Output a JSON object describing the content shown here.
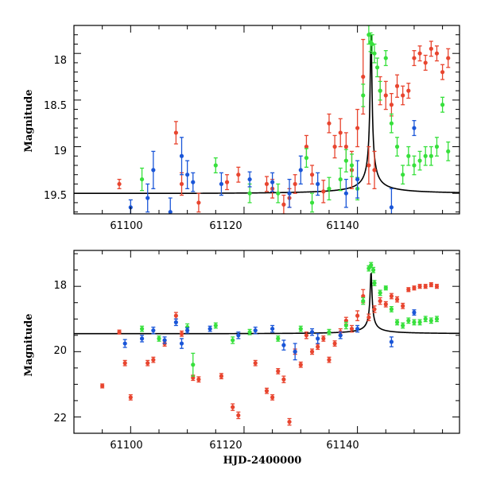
{
  "colors": {
    "red": "#e8452f",
    "green": "#37e03c",
    "blue": "#1a56d8",
    "model": "#000000"
  },
  "chart_data": [
    {
      "type": "scatter",
      "panel": "top",
      "title": "",
      "xlabel": "",
      "ylabel": "Magnitude",
      "xlim": [
        61090,
        61158
      ],
      "ylim": [
        17.7,
        19.72
      ],
      "y_inverted": true,
      "xticks": [
        61100,
        61120,
        61140
      ],
      "xtick_labels": [
        "61100",
        "61120",
        "61140"
      ],
      "yticks": [
        18,
        18.5,
        19,
        19.5
      ],
      "ytick_labels": [
        "18",
        "18.5",
        "19",
        "19.5"
      ],
      "model": {
        "t0": 61142.4,
        "baseline": 19.5,
        "peak": 17.75,
        "tE": 32,
        "u0": 0.0045
      },
      "series": [
        {
          "name": "red",
          "color": "#e8452f",
          "points": [
            [
              61098,
              19.4,
              0.05
            ],
            [
              61108,
              18.85,
              0.12
            ],
            [
              61109,
              19.4,
              0.12
            ],
            [
              61112,
              19.6,
              0.1
            ],
            [
              61117,
              19.38,
              0.08
            ],
            [
              61119,
              19.3,
              0.08
            ],
            [
              61124,
              19.4,
              0.08
            ],
            [
              61125,
              19.45,
              0.1
            ],
            [
              61127,
              19.62,
              0.1
            ],
            [
              61128,
              19.55,
              0.1
            ],
            [
              61129,
              19.4,
              0.1
            ],
            [
              61131,
              19.0,
              0.12
            ],
            [
              61132,
              19.3,
              0.1
            ],
            [
              61134,
              19.48,
              0.12
            ],
            [
              61135,
              18.75,
              0.1
            ],
            [
              61136,
              19.0,
              0.12
            ],
            [
              61137,
              18.85,
              0.15
            ],
            [
              61138,
              19.0,
              0.15
            ],
            [
              61139,
              19.25,
              0.2
            ],
            [
              61140,
              18.8,
              0.2
            ],
            [
              61141,
              18.25,
              0.4
            ],
            [
              61142,
              19.2,
              0.2
            ],
            [
              61143,
              19.25,
              0.2
            ],
            [
              61144,
              18.4,
              0.15
            ],
            [
              61145,
              18.45,
              0.15
            ],
            [
              61146,
              18.55,
              0.12
            ],
            [
              61147,
              18.35,
              0.12
            ],
            [
              61148,
              18.45,
              0.1
            ],
            [
              61149,
              18.4,
              0.08
            ],
            [
              61150,
              18.05,
              0.08
            ],
            [
              61151,
              18.0,
              0.08
            ],
            [
              61152,
              18.1,
              0.08
            ],
            [
              61153,
              17.95,
              0.08
            ],
            [
              61154,
              18.0,
              0.08
            ],
            [
              61155,
              18.2,
              0.08
            ],
            [
              61156,
              18.05,
              0.1
            ]
          ]
        },
        {
          "name": "green",
          "color": "#37e03c",
          "points": [
            [
              61102,
              19.35,
              0.12
            ],
            [
              61115,
              19.2,
              0.08
            ],
            [
              61121,
              19.5,
              0.1
            ],
            [
              61126,
              19.5,
              0.1
            ],
            [
              61131,
              19.12,
              0.1
            ],
            [
              61132,
              19.6,
              0.1
            ],
            [
              61135,
              19.45,
              0.12
            ],
            [
              61137,
              19.35,
              0.12
            ],
            [
              61138,
              19.15,
              0.12
            ],
            [
              61139,
              19.2,
              0.12
            ],
            [
              61140,
              19.45,
              0.12
            ],
            [
              61141,
              18.45,
              0.12
            ],
            [
              61142,
              17.8,
              0.1
            ],
            [
              61142.3,
              17.88,
              0.1
            ],
            [
              61142.6,
              17.9,
              0.1
            ],
            [
              61143,
              18.0,
              0.1
            ],
            [
              61143.5,
              18.15,
              0.1
            ],
            [
              61144,
              18.4,
              0.1
            ],
            [
              61145,
              18.05,
              0.08
            ],
            [
              61146,
              18.75,
              0.1
            ],
            [
              61147,
              19.0,
              0.1
            ],
            [
              61148,
              19.3,
              0.1
            ],
            [
              61149,
              19.1,
              0.1
            ],
            [
              61150,
              19.2,
              0.1
            ],
            [
              61151,
              19.15,
              0.1
            ],
            [
              61152,
              19.1,
              0.1
            ],
            [
              61153,
              19.1,
              0.1
            ],
            [
              61154,
              19.0,
              0.1
            ],
            [
              61155,
              18.55,
              0.08
            ],
            [
              61156,
              19.05,
              0.1
            ]
          ]
        },
        {
          "name": "blue",
          "color": "#1a56d8",
          "points": [
            [
              61100,
              19.65,
              0.08
            ],
            [
              61103,
              19.55,
              0.15
            ],
            [
              61104,
              19.25,
              0.2
            ],
            [
              61107,
              19.7,
              0.15
            ],
            [
              61109,
              19.1,
              0.2
            ],
            [
              61110,
              19.3,
              0.15
            ],
            [
              61111,
              19.38,
              0.1
            ],
            [
              61116,
              19.4,
              0.12
            ],
            [
              61121,
              19.35,
              0.08
            ],
            [
              61125,
              19.38,
              0.1
            ],
            [
              61128,
              19.5,
              0.15
            ],
            [
              61130,
              19.25,
              0.15
            ],
            [
              61133,
              19.4,
              0.12
            ],
            [
              61138,
              19.5,
              0.15
            ],
            [
              61140,
              19.35,
              0.2
            ],
            [
              61146,
              19.65,
              0.2
            ],
            [
              61150,
              18.8,
              0.08
            ]
          ]
        }
      ]
    },
    {
      "type": "scatter",
      "panel": "bottom",
      "title": "",
      "xlabel": "HJD-2400000",
      "ylabel": "Magnitude",
      "xlim": [
        61090,
        61158
      ],
      "ylim": [
        16.9,
        22.5
      ],
      "y_inverted": true,
      "xticks": [
        61100,
        61120,
        61140
      ],
      "xtick_labels": [
        "61100",
        "61120",
        "61140"
      ],
      "yticks": [
        18,
        20,
        22
      ],
      "ytick_labels": [
        "18",
        "20",
        "22"
      ],
      "model": {
        "t0": 61142.4,
        "baseline": 19.45,
        "peak": 17.55,
        "tE": 32,
        "u0": 0.0045
      },
      "series": [
        {
          "name": "red",
          "color": "#e8452f",
          "points": [
            [
              61095,
              21.05,
              0.06
            ],
            [
              61098,
              19.4,
              0.06
            ],
            [
              61099,
              20.35,
              0.08
            ],
            [
              61100,
              21.4,
              0.08
            ],
            [
              61103,
              20.35,
              0.08
            ],
            [
              61104,
              20.25,
              0.08
            ],
            [
              61106,
              19.75,
              0.08
            ],
            [
              61108,
              18.9,
              0.1
            ],
            [
              61109,
              19.45,
              0.08
            ],
            [
              61111,
              20.8,
              0.08
            ],
            [
              61112,
              20.85,
              0.08
            ],
            [
              61116,
              20.75,
              0.08
            ],
            [
              61118,
              21.7,
              0.1
            ],
            [
              61119,
              21.95,
              0.1
            ],
            [
              61122,
              20.35,
              0.08
            ],
            [
              61124,
              21.2,
              0.08
            ],
            [
              61125,
              21.4,
              0.08
            ],
            [
              61126,
              20.6,
              0.08
            ],
            [
              61127,
              20.85,
              0.1
            ],
            [
              61128,
              22.15,
              0.1
            ],
            [
              61129,
              20.0,
              0.08
            ],
            [
              61130,
              20.4,
              0.08
            ],
            [
              61131,
              19.5,
              0.1
            ],
            [
              61132,
              20.0,
              0.08
            ],
            [
              61133,
              19.85,
              0.08
            ],
            [
              61134,
              19.6,
              0.08
            ],
            [
              61135,
              20.25,
              0.08
            ],
            [
              61136,
              19.75,
              0.08
            ],
            [
              61137,
              19.4,
              0.1
            ],
            [
              61138,
              19.05,
              0.1
            ],
            [
              61139,
              19.3,
              0.1
            ],
            [
              61140,
              18.9,
              0.15
            ],
            [
              61141,
              18.3,
              0.2
            ],
            [
              61142,
              18.95,
              0.1
            ],
            [
              61143,
              18.7,
              0.1
            ],
            [
              61144,
              18.45,
              0.1
            ],
            [
              61145,
              18.55,
              0.08
            ],
            [
              61146,
              18.3,
              0.08
            ],
            [
              61147,
              18.4,
              0.08
            ],
            [
              61148,
              18.6,
              0.08
            ],
            [
              61149,
              18.1,
              0.06
            ],
            [
              61150,
              18.05,
              0.06
            ],
            [
              61151,
              18.0,
              0.06
            ],
            [
              61152,
              18.0,
              0.06
            ],
            [
              61153,
              17.95,
              0.06
            ],
            [
              61154,
              18.0,
              0.06
            ]
          ]
        },
        {
          "name": "green",
          "color": "#37e03c",
          "points": [
            [
              61102,
              19.3,
              0.08
            ],
            [
              61105,
              19.6,
              0.08
            ],
            [
              61110,
              19.25,
              0.1
            ],
            [
              61111,
              20.4,
              0.35
            ],
            [
              61115,
              19.2,
              0.08
            ],
            [
              61118,
              19.65,
              0.1
            ],
            [
              61121,
              19.4,
              0.08
            ],
            [
              61126,
              19.6,
              0.08
            ],
            [
              61130,
              19.3,
              0.08
            ],
            [
              61135,
              19.4,
              0.08
            ],
            [
              61138,
              19.2,
              0.1
            ],
            [
              61141,
              18.45,
              0.1
            ],
            [
              61142,
              17.45,
              0.08
            ],
            [
              61142.4,
              17.35,
              0.08
            ],
            [
              61142.8,
              17.5,
              0.08
            ],
            [
              61143,
              17.9,
              0.08
            ],
            [
              61144,
              18.2,
              0.08
            ],
            [
              61145,
              18.05,
              0.06
            ],
            [
              61146,
              18.7,
              0.08
            ],
            [
              61147,
              19.1,
              0.08
            ],
            [
              61148,
              19.2,
              0.08
            ],
            [
              61149,
              19.05,
              0.08
            ],
            [
              61150,
              19.1,
              0.08
            ],
            [
              61151,
              19.1,
              0.08
            ],
            [
              61152,
              19.0,
              0.08
            ],
            [
              61153,
              19.05,
              0.08
            ],
            [
              61154,
              19.0,
              0.08
            ]
          ]
        },
        {
          "name": "blue",
          "color": "#1a56d8",
          "points": [
            [
              61099,
              19.75,
              0.12
            ],
            [
              61102,
              19.6,
              0.1
            ],
            [
              61104,
              19.35,
              0.1
            ],
            [
              61106,
              19.65,
              0.1
            ],
            [
              61108,
              19.1,
              0.1
            ],
            [
              61109,
              19.75,
              0.15
            ],
            [
              61110,
              19.35,
              0.08
            ],
            [
              61114,
              19.3,
              0.08
            ],
            [
              61119,
              19.5,
              0.1
            ],
            [
              61122,
              19.35,
              0.1
            ],
            [
              61125,
              19.3,
              0.1
            ],
            [
              61127,
              19.8,
              0.15
            ],
            [
              61129,
              20.0,
              0.25
            ],
            [
              61132,
              19.4,
              0.1
            ],
            [
              61133,
              19.6,
              0.15
            ],
            [
              61137,
              19.5,
              0.1
            ],
            [
              61140,
              19.3,
              0.1
            ],
            [
              61146,
              19.7,
              0.15
            ],
            [
              61150,
              18.8,
              0.08
            ]
          ]
        }
      ]
    }
  ]
}
